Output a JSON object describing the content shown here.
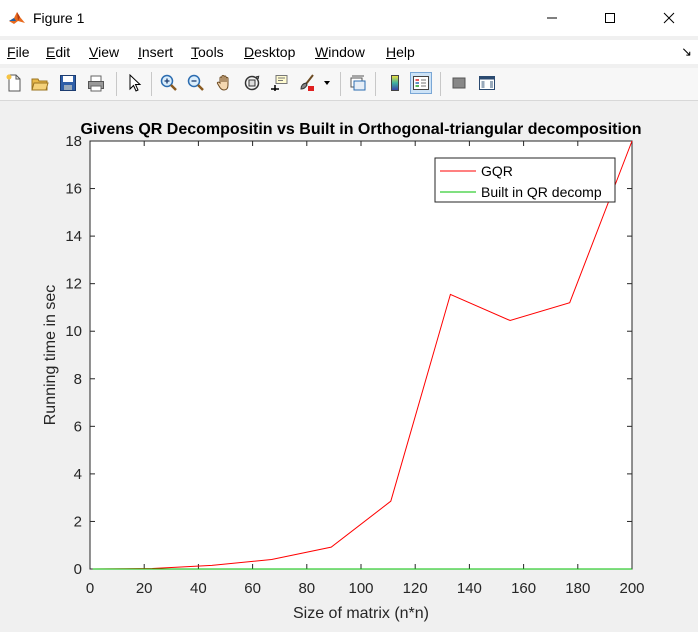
{
  "window": {
    "title": "Figure 1"
  },
  "menu": [
    "File",
    "Edit",
    "View",
    "Insert",
    "Tools",
    "Desktop",
    "Window",
    "Help"
  ],
  "menu_underline": [
    "F",
    "E",
    "V",
    "I",
    "T",
    "D",
    "W",
    "H"
  ],
  "toolbar": {
    "icons": [
      "new-figure-icon",
      "open-file-icon",
      "save-icon",
      "print-icon",
      "edit-plot-arrow-icon",
      "zoom-in-icon",
      "zoom-out-icon",
      "pan-hand-icon",
      "rotate-3d-icon",
      "data-cursor-icon",
      "brush-icon",
      "brush-dropdown-icon",
      "link-plot-icon",
      "insert-colorbar-icon",
      "insert-legend-icon",
      "hide-plot-tools-icon",
      "show-plot-tools-icon"
    ]
  },
  "colors": {
    "gqr": "#ff0000",
    "builtin": "#00c000",
    "accent": "#0078d7"
  },
  "chart_data": {
    "type": "line",
    "title": "Givens QR Decompositin vs Built in Orthogonal-triangular decomposition",
    "xlabel": "Size of matrix (n*n)",
    "ylabel": "Running time in sec",
    "xlim": [
      0,
      200
    ],
    "ylim": [
      0,
      18
    ],
    "xticks": [
      0,
      20,
      40,
      60,
      80,
      100,
      120,
      140,
      160,
      180,
      200
    ],
    "yticks": [
      0,
      2,
      4,
      6,
      8,
      10,
      12,
      14,
      16,
      18
    ],
    "grid": false,
    "legend_location": "top-right",
    "series": [
      {
        "name": "GQR",
        "color": "#ff0000",
        "x": [
          1,
          23,
          45,
          67,
          89,
          111,
          133,
          155,
          177,
          200
        ],
        "y": [
          0.0,
          0.02,
          0.15,
          0.4,
          0.92,
          2.85,
          11.55,
          10.45,
          11.2,
          18.0
        ]
      },
      {
        "name": "Built in QR decomp",
        "color": "#00c000",
        "x": [
          1,
          23,
          45,
          67,
          89,
          111,
          133,
          155,
          177,
          200
        ],
        "y": [
          0,
          0,
          0,
          0,
          0,
          0,
          0,
          0,
          0,
          0
        ]
      }
    ]
  }
}
